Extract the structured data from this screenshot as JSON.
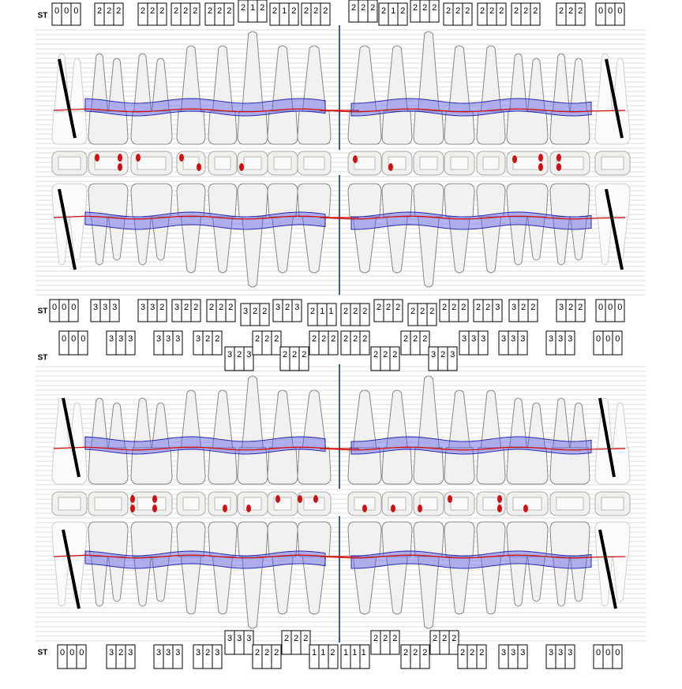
{
  "rows": [
    {
      "label": "ST",
      "groups": [
        "000",
        "222",
        "222",
        "222",
        "222",
        "212",
        "212",
        "222",
        "222",
        "212",
        "222",
        "222",
        "222",
        "222",
        "222",
        "000"
      ]
    },
    {
      "label": "ST",
      "groups": [
        "000",
        "333",
        "332",
        "322",
        "222",
        "322",
        "323",
        "211",
        "222",
        "222",
        "222",
        "222",
        "223",
        "322",
        "322",
        "000"
      ]
    },
    {
      "label": "ST",
      "groups": [
        "000",
        "333",
        "333",
        "322",
        "323",
        "222",
        "222",
        "222",
        "222",
        "222",
        "222",
        "323",
        "333",
        "333",
        "333",
        "000"
      ]
    },
    {
      "label": "ST",
      "groups": [
        "000",
        "323",
        "333",
        "323",
        "333",
        "222",
        "222",
        "112",
        "111",
        "222",
        "222",
        "222",
        "222",
        "333",
        "333",
        "000"
      ]
    }
  ]
}
